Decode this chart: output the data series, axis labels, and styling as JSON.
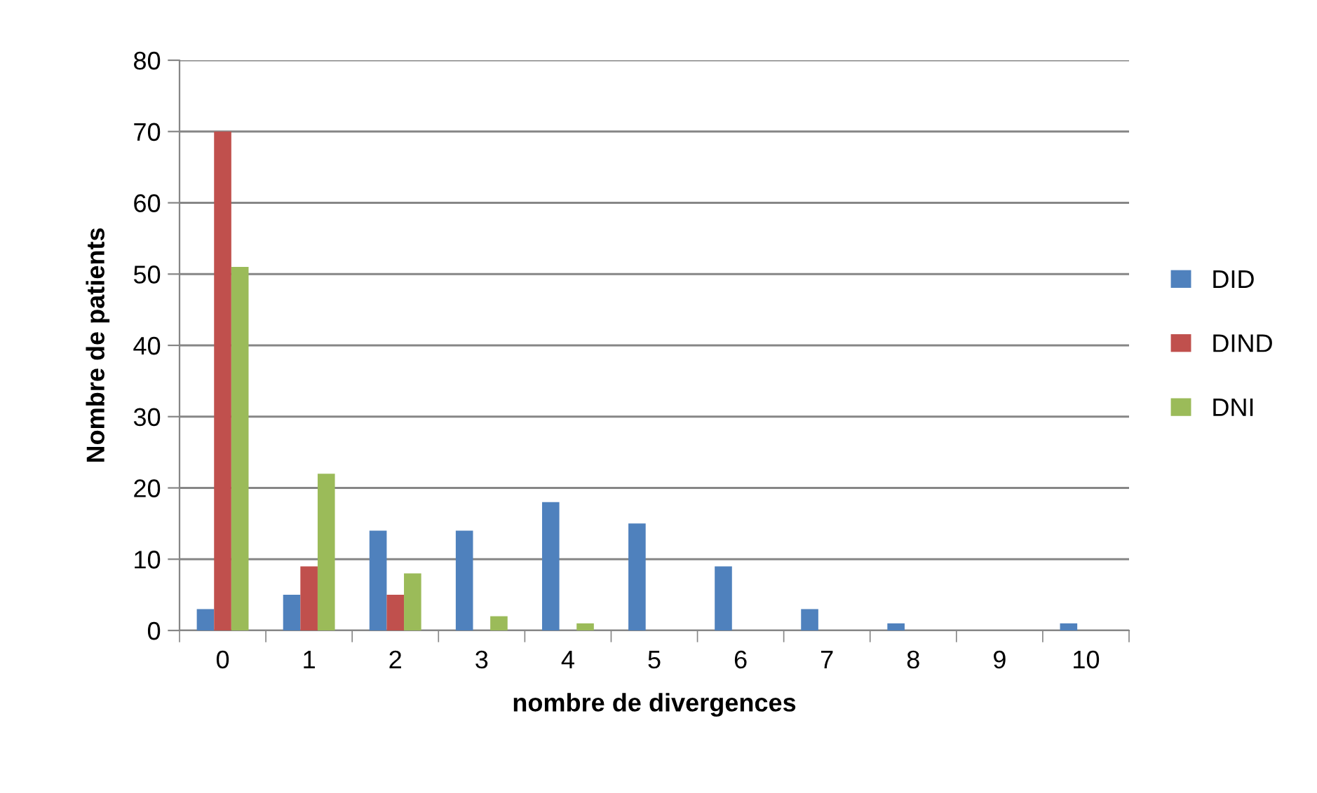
{
  "chart_data": {
    "type": "bar",
    "xlabel": "nombre de divergences",
    "ylabel": "Nombre de patients",
    "categories": [
      "0",
      "1",
      "2",
      "3",
      "4",
      "5",
      "6",
      "7",
      "8",
      "9",
      "10"
    ],
    "series": [
      {
        "name": "DID",
        "color": "#4f81bd",
        "values": [
          3,
          5,
          14,
          14,
          18,
          15,
          9,
          3,
          1,
          0,
          1
        ]
      },
      {
        "name": "DIND",
        "color": "#c0504d",
        "values": [
          70,
          9,
          5,
          0,
          0,
          0,
          0,
          0,
          0,
          0,
          0
        ]
      },
      {
        "name": "DNI",
        "color": "#9bbb59",
        "values": [
          51,
          22,
          8,
          2,
          1,
          0,
          0,
          0,
          0,
          0,
          0
        ]
      }
    ],
    "ylim": [
      0,
      80
    ],
    "yticks": [
      0,
      10,
      20,
      30,
      40,
      50,
      60,
      70,
      80
    ],
    "grid": "y",
    "legend": "right"
  }
}
